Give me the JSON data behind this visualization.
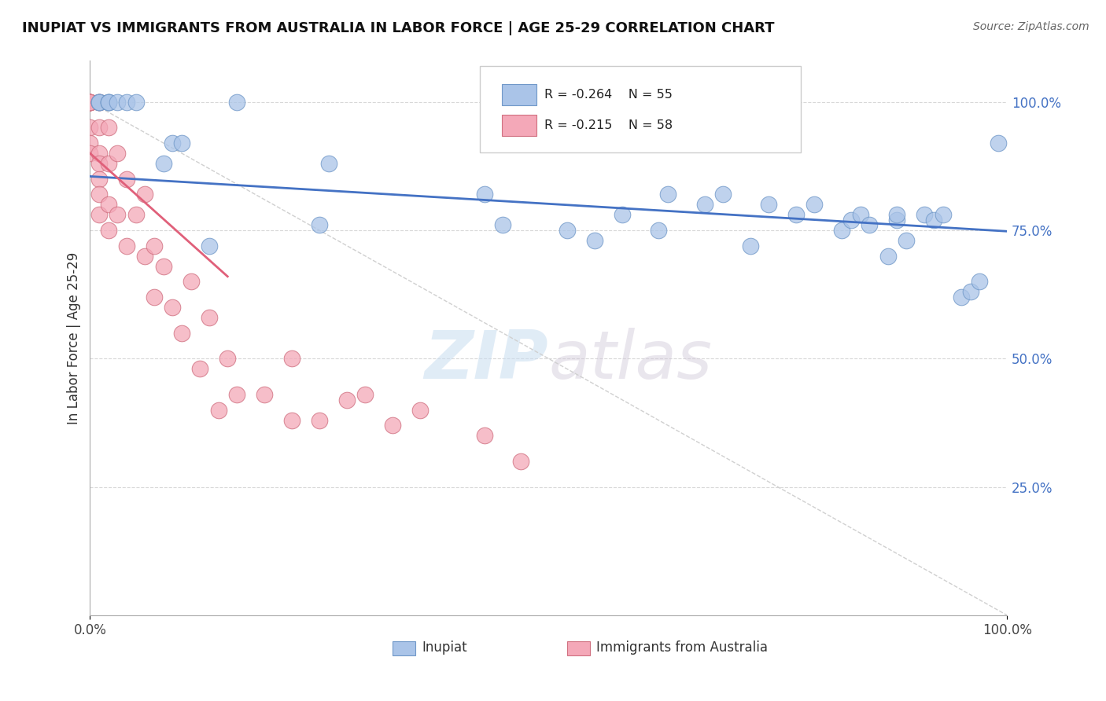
{
  "title": "INUPIAT VS IMMIGRANTS FROM AUSTRALIA IN LABOR FORCE | AGE 25-29 CORRELATION CHART",
  "source": "Source: ZipAtlas.com",
  "ylabel": "In Labor Force | Age 25-29",
  "xlim": [
    0.0,
    1.0
  ],
  "ylim": [
    0.0,
    1.08
  ],
  "blue_color": "#aac4e8",
  "pink_color": "#f4a8b8",
  "blue_line_color": "#4472c4",
  "pink_line_color": "#e0607a",
  "diag_color": "#d0d0d0",
  "grid_color": "#d8d8d8",
  "legend_R_blue": "R = -0.264",
  "legend_N_blue": "N = 55",
  "legend_R_pink": "R = -0.215",
  "legend_N_pink": "N = 58",
  "legend_label_blue": "Inupiat",
  "legend_label_pink": "Immigrants from Australia",
  "watermark": "ZIPatlas",
  "blue_scatter_x": [
    0.01,
    0.01,
    0.01,
    0.02,
    0.02,
    0.02,
    0.03,
    0.04,
    0.05,
    0.08,
    0.09,
    0.1,
    0.13,
    0.16,
    0.25,
    0.26,
    0.43,
    0.45,
    0.52,
    0.55,
    0.58,
    0.62,
    0.63,
    0.67,
    0.69,
    0.72,
    0.74,
    0.77,
    0.79,
    0.82,
    0.83,
    0.84,
    0.85,
    0.87,
    0.88,
    0.88,
    0.89,
    0.91,
    0.92,
    0.93,
    0.95,
    0.96,
    0.97,
    0.99
  ],
  "blue_scatter_y": [
    1.0,
    1.0,
    1.0,
    1.0,
    1.0,
    1.0,
    1.0,
    1.0,
    1.0,
    0.88,
    0.92,
    0.92,
    0.72,
    1.0,
    0.76,
    0.88,
    0.82,
    0.76,
    0.75,
    0.73,
    0.78,
    0.75,
    0.82,
    0.8,
    0.82,
    0.72,
    0.8,
    0.78,
    0.8,
    0.75,
    0.77,
    0.78,
    0.76,
    0.7,
    0.77,
    0.78,
    0.73,
    0.78,
    0.77,
    0.78,
    0.62,
    0.63,
    0.65,
    0.92
  ],
  "pink_scatter_x": [
    0.0,
    0.0,
    0.0,
    0.0,
    0.0,
    0.0,
    0.0,
    0.0,
    0.0,
    0.0,
    0.01,
    0.01,
    0.01,
    0.01,
    0.01,
    0.01,
    0.01,
    0.01,
    0.02,
    0.02,
    0.02,
    0.02,
    0.03,
    0.03,
    0.04,
    0.04,
    0.05,
    0.06,
    0.06,
    0.07,
    0.07,
    0.08,
    0.09,
    0.1,
    0.11,
    0.12,
    0.13,
    0.14,
    0.15,
    0.16,
    0.19,
    0.22,
    0.22,
    0.25,
    0.28,
    0.3,
    0.33,
    0.36,
    0.43,
    0.47
  ],
  "pink_scatter_y": [
    1.0,
    1.0,
    1.0,
    1.0,
    1.0,
    1.0,
    1.0,
    0.95,
    0.92,
    0.9,
    1.0,
    1.0,
    0.95,
    0.9,
    0.88,
    0.85,
    0.82,
    0.78,
    0.95,
    0.88,
    0.8,
    0.75,
    0.9,
    0.78,
    0.85,
    0.72,
    0.78,
    0.82,
    0.7,
    0.72,
    0.62,
    0.68,
    0.6,
    0.55,
    0.65,
    0.48,
    0.58,
    0.4,
    0.5,
    0.43,
    0.43,
    0.38,
    0.5,
    0.38,
    0.42,
    0.43,
    0.37,
    0.4,
    0.35,
    0.3
  ],
  "blue_trend_x": [
    0.0,
    1.0
  ],
  "blue_trend_y": [
    0.855,
    0.748
  ],
  "pink_trend_x": [
    0.0,
    0.15
  ],
  "pink_trend_y": [
    0.9,
    0.66
  ]
}
